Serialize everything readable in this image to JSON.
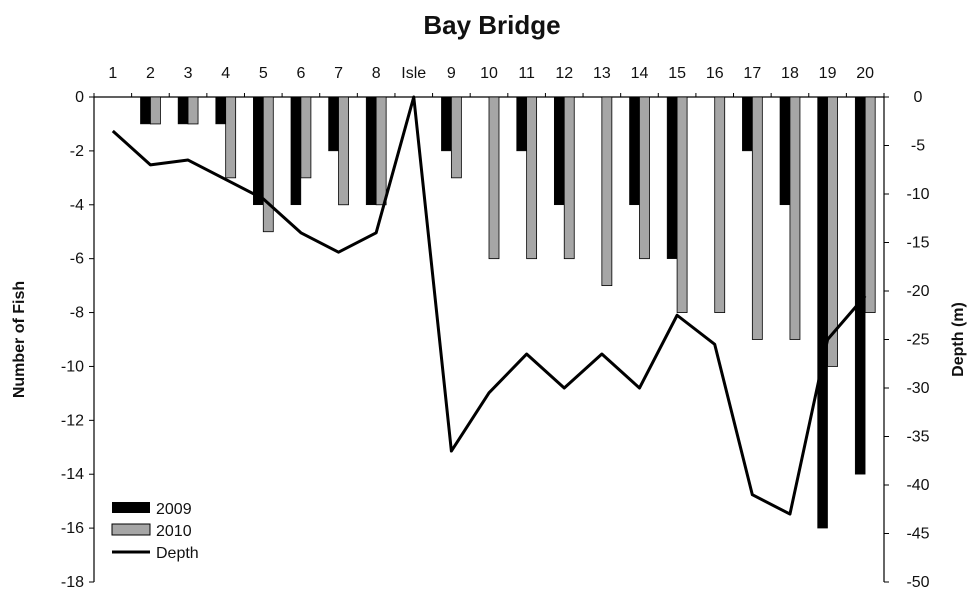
{
  "chart_data": {
    "type": "bar",
    "title": "Bay Bridge",
    "categories": [
      "1",
      "2",
      "3",
      "4",
      "5",
      "6",
      "7",
      "8",
      "Isle",
      "9",
      "10",
      "11",
      "12",
      "13",
      "14",
      "15",
      "16",
      "17",
      "18",
      "19",
      "20"
    ],
    "series": [
      {
        "name": "2009",
        "axis": "left",
        "kind": "bar",
        "color": "#000000",
        "values": [
          0,
          -1,
          -1,
          -1,
          -4,
          -4,
          -2,
          -4,
          null,
          -2,
          0,
          -2,
          -4,
          0,
          -4,
          -6,
          0,
          -2,
          -4,
          -16,
          -14
        ]
      },
      {
        "name": "2010",
        "axis": "left",
        "kind": "bar",
        "color": "#a6a6a6",
        "values": [
          0,
          -1,
          -1,
          -3,
          -5,
          -3,
          -4,
          -4,
          null,
          -3,
          -6,
          -6,
          -6,
          -7,
          -6,
          -8,
          -8,
          -9,
          -9,
          -10,
          -8
        ]
      },
      {
        "name": "Depth",
        "axis": "right",
        "kind": "line",
        "color": "#000000",
        "values": [
          -3.5,
          -7,
          -6.5,
          -8.5,
          -10.5,
          -14,
          -16,
          -14,
          0,
          -36.5,
          -30.5,
          -26.5,
          -30,
          -26.5,
          -30,
          -22.5,
          -25.5,
          -41,
          -43,
          -25,
          -20.5
        ]
      }
    ],
    "ylabel": "Number of Fish",
    "ylim": [
      -18,
      0
    ],
    "yticks": [
      "0",
      "-2",
      "-4",
      "-6",
      "-8",
      "-10",
      "-12",
      "-14",
      "-16",
      "-18"
    ],
    "y2label": "Depth (m)",
    "y2lim": [
      -50,
      0
    ],
    "y2ticks": [
      "0",
      "-5",
      "-10",
      "-15",
      "-20",
      "-25",
      "-30",
      "-35",
      "-40",
      "-45",
      "-50"
    ],
    "x_axis_position": "top",
    "grid": false,
    "legend": {
      "position": "bottom-left",
      "entries": [
        {
          "label": "2009",
          "swatch": "bar-black"
        },
        {
          "label": "2010",
          "swatch": "bar-gray"
        },
        {
          "label": "Depth",
          "swatch": "line-black"
        }
      ]
    }
  }
}
